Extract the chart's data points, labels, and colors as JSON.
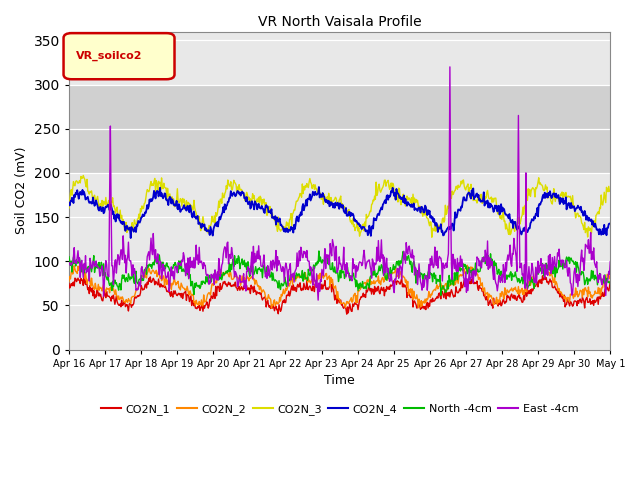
{
  "title": "VR North Vaisala Profile",
  "ylabel": "Soil CO2 (mV)",
  "xlabel": "Time",
  "ylim": [
    0,
    360
  ],
  "yticks": [
    0,
    50,
    100,
    150,
    200,
    250,
    300,
    350
  ],
  "legend_label": "VR_soilco2",
  "legend_bg": "#ffffcc",
  "legend_edge": "#cc0000",
  "bg_color": "#e8e8e8",
  "shaded_band_lo": 200,
  "shaded_band_hi": 300,
  "shaded_band_color": "#d0d0d0",
  "series_colors": {
    "CO2N_1": "#dd0000",
    "CO2N_2": "#ff8800",
    "CO2N_3": "#dddd00",
    "CO2N_4": "#0000cc",
    "North -4cm": "#00bb00",
    "East -4cm": "#aa00cc"
  },
  "x_tick_labels": [
    "Apr 16",
    "Apr 17",
    "Apr 18",
    "Apr 19",
    "Apr 20",
    "Apr 21",
    "Apr 22",
    "Apr 23",
    "Apr 24",
    "Apr 25",
    "Apr 26",
    "Apr 27",
    "Apr 28",
    "Apr 29",
    "Apr 30",
    "May 1"
  ],
  "n_points": 720,
  "figsize": [
    6.4,
    4.8
  ],
  "dpi": 100
}
